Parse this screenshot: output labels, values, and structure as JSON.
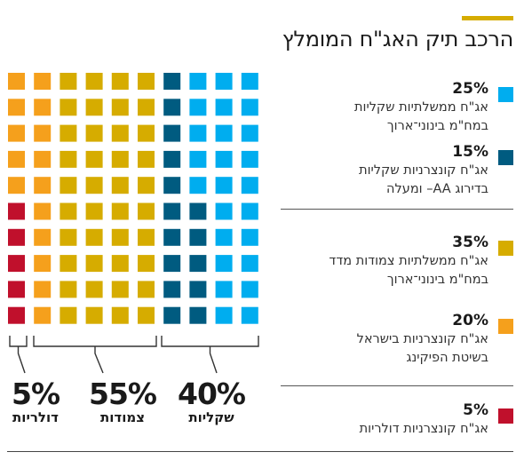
{
  "title": "הרכב תיק האג\"ח המומלץ",
  "colors": {
    "accent": "#d6ac00",
    "light_blue": "#00adef",
    "dark_blue": "#005b80",
    "mustard": "#d6ac00",
    "orange": "#f5a01c",
    "red": "#c0102c"
  },
  "legend": [
    {
      "pct": "25%",
      "line1": "אג\"ח ממשלתיות שקליות",
      "line2": "במח\"מ בינוני־ארוך",
      "color": "#00adef"
    },
    {
      "pct": "15%",
      "line1": "אג\"ח קונצרניות שקליות",
      "line2": "בדירוג AA– ומעלה",
      "color": "#005b80"
    },
    {
      "pct": "35%",
      "line1": "אג\"ח ממשלתיות צמודות מדד",
      "line2": "במח\"מ בינוני־ארוך",
      "color": "#d6ac00"
    },
    {
      "pct": "20%",
      "line1": "אג\"ח קונצרניות בישראל",
      "line2": "בשיטת הפיקינג",
      "color": "#f5a01c"
    },
    {
      "pct": "5%",
      "line1": "אג\"ח קונצרניות דולריות",
      "line2": "",
      "color": "#c0102c"
    }
  ],
  "summary": [
    {
      "pct": "40%",
      "label": "שקליות"
    },
    {
      "pct": "55%",
      "label": "צמודות"
    },
    {
      "pct": "5%",
      "label": "דולריות"
    }
  ],
  "chart_data": {
    "type": "waffle",
    "title": "הרכב תיק האג\"ח המומלץ",
    "grid": {
      "rows": 10,
      "cols": 10
    },
    "series": [
      {
        "name": "אג\"ח ממשלתיות שקליות במח\"מ בינוני־ארוך",
        "value": 25,
        "color": "#00adef"
      },
      {
        "name": "אג\"ח קונצרניות שקליות בדירוג AA– ומעלה",
        "value": 15,
        "color": "#005b80"
      },
      {
        "name": "אג\"ח ממשלתיות צמודות מדד במח\"מ בינוני־ארוך",
        "value": 35,
        "color": "#d6ac00"
      },
      {
        "name": "אג\"ח קונצרניות בישראל בשיטת הפיקינג",
        "value": 20,
        "color": "#f5a01c"
      },
      {
        "name": "אג\"ח קונצרניות דולריות",
        "value": 5,
        "color": "#c0102c"
      }
    ],
    "groups": [
      {
        "label": "שקליות",
        "value": 40
      },
      {
        "label": "צמודות",
        "value": 55
      },
      {
        "label": "דולריות",
        "value": 5
      }
    ]
  }
}
